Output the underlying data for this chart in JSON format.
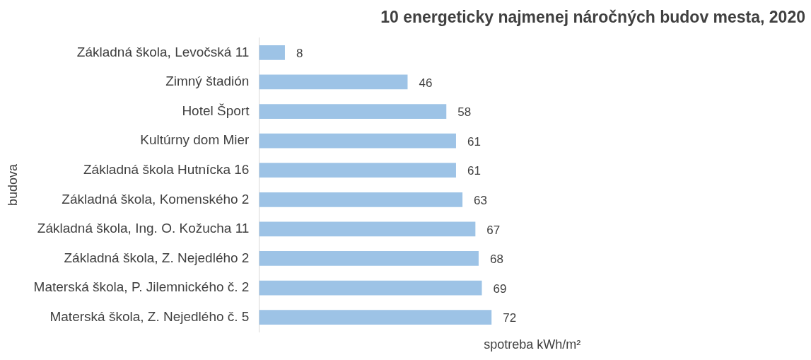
{
  "chart_data": {
    "type": "bar",
    "orientation": "horizontal",
    "title": "10 energeticky najmenej náročných budov mesta, 2020",
    "xlabel": "spotreba kWh/m²",
    "ylabel": "budova",
    "categories": [
      "Základná škola, Levočská 11",
      "Zimný štadión",
      "Hotel Šport",
      "Kultúrny dom Mier",
      "Základná škola Hutnícka 16",
      "Základná škola, Komenského 2",
      "Základná škola, Ing. O. Kožucha 11",
      "Základná škola, Z. Nejedlého 2",
      "Materská škola, P. Jilemnického č. 2",
      "Materská škola, Z. Nejedlého č. 5"
    ],
    "values": [
      8,
      46,
      58,
      61,
      61,
      63,
      67,
      68,
      69,
      72
    ],
    "color": "#9dc3e6",
    "data_labels": true,
    "grid": false,
    "legend": false
  }
}
